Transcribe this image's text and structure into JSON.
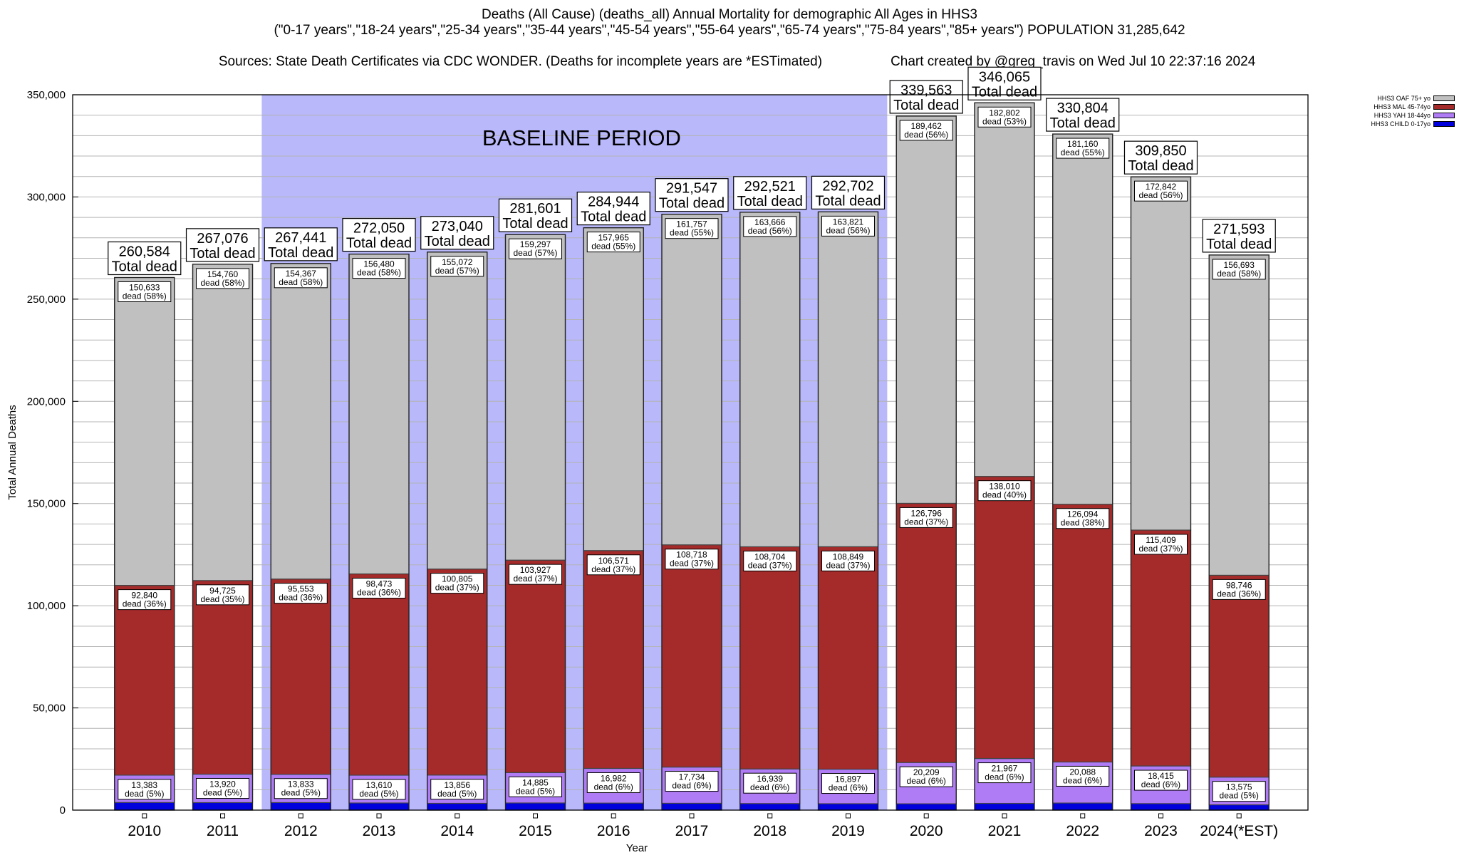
{
  "title": {
    "line1": "Deaths (All Cause) (deaths_all) Annual Mortality for demographic All Ages in HHS3",
    "line2": "(\"0-17 years\",\"18-24 years\",\"25-34 years\",\"35-44 years\",\"45-54 years\",\"55-64 years\",\"65-74 years\",\"75-84 years\",\"85+ years\") POPULATION 31,285,642",
    "line3_left": "Sources: State Death Certificates via CDC WONDER. (Deaths for incomplete years are *ESTimated)",
    "line3_right": "Chart created by @greg_travis on Wed Jul 10 22:37:16 2024"
  },
  "colors": {
    "child": "#0000dd",
    "yah": "#b07cf5",
    "mal": "#a52a2a",
    "oaf": "#c0c0c0",
    "baseline": "#b8b8fb"
  },
  "legend": [
    {
      "label": "HHS3 OAF 75+ yo",
      "color": "#c0c0c0"
    },
    {
      "label": "HHS3 MAL 45-74yo",
      "color": "#a52a2a"
    },
    {
      "label": "HHS3 YAH 18-44yo",
      "color": "#b07cf5"
    },
    {
      "label": "HHS3 CHILD 0-17yo",
      "color": "#0000dd"
    }
  ],
  "chart_data": {
    "type": "bar",
    "stacked": true,
    "xlabel": "Year",
    "ylabel": "Total Annual Deaths",
    "ylim": [
      0,
      350000
    ],
    "yticks": [
      0,
      50000,
      100000,
      150000,
      200000,
      250000,
      300000,
      350000
    ],
    "ytick_labels": [
      "0",
      "50,000",
      "100,000",
      "150,000",
      "200,000",
      "250,000",
      "300,000",
      "350,000"
    ],
    "categories": [
      "2010",
      "2011",
      "2012",
      "2013",
      "2014",
      "2015",
      "2016",
      "2017",
      "2018",
      "2019",
      "2020",
      "2021",
      "2022",
      "2023",
      "2024(*EST)"
    ],
    "baseline": {
      "label": "BASELINE PERIOD",
      "from": "2012",
      "to": "2019"
    },
    "total_suffix": "Total dead",
    "totals": [
      "260,584",
      "267,076",
      "267,441",
      "272,050",
      "273,040",
      "281,601",
      "284,944",
      "291,547",
      "292,521",
      "292,702",
      "339,563",
      "346,065",
      "330,804",
      "309,850",
      "271,593"
    ],
    "series": [
      {
        "name": "HHS3 CHILD 0-17yo",
        "values": [
          3728,
          3671,
          3688,
          3487,
          3307,
          3492,
          3426,
          3338,
          3212,
          3135,
          3096,
          3286,
          3462,
          3184,
          2579
        ]
      },
      {
        "name": "HHS3 YAH 18-44yo",
        "values": [
          13383,
          13920,
          13833,
          13610,
          13856,
          14885,
          16982,
          17734,
          16939,
          16897,
          20209,
          21967,
          20088,
          18415,
          13575
        ],
        "labels": [
          "13,383",
          "13,920",
          "13,833",
          "13,610",
          "13,856",
          "14,885",
          "16,982",
          "17,734",
          "16,939",
          "16,897",
          "20,209",
          "21,967",
          "20,088",
          "18,415",
          "13,575"
        ],
        "pct": [
          "dead (5%)",
          "dead (5%)",
          "dead (5%)",
          "dead (5%)",
          "dead (5%)",
          "dead (5%)",
          "dead (6%)",
          "dead (6%)",
          "dead (6%)",
          "dead (6%)",
          "dead (6%)",
          "dead (6%)",
          "dead (6%)",
          "dead (6%)",
          "dead (5%)"
        ]
      },
      {
        "name": "HHS3 MAL 45-74yo",
        "values": [
          92840,
          94725,
          95553,
          98473,
          100805,
          103927,
          106571,
          108718,
          108704,
          108849,
          126796,
          138010,
          126094,
          115409,
          98746
        ],
        "labels": [
          "92,840",
          "94,725",
          "95,553",
          "98,473",
          "100,805",
          "103,927",
          "106,571",
          "108,718",
          "108,704",
          "108,849",
          "126,796",
          "138,010",
          "126,094",
          "115,409",
          "98,746"
        ],
        "pct": [
          "dead (36%)",
          "dead (35%)",
          "dead (36%)",
          "dead (36%)",
          "dead (37%)",
          "dead (37%)",
          "dead (37%)",
          "dead (37%)",
          "dead (37%)",
          "dead (37%)",
          "dead (37%)",
          "dead (40%)",
          "dead (38%)",
          "dead (37%)",
          "dead (36%)"
        ]
      },
      {
        "name": "HHS3 OAF 75+ yo",
        "values": [
          150633,
          154760,
          154367,
          156480,
          155072,
          159297,
          157965,
          161757,
          163666,
          163821,
          189462,
          182802,
          181160,
          172842,
          156693
        ],
        "labels": [
          "150,633",
          "154,760",
          "154,367",
          "156,480",
          "155,072",
          "159,297",
          "157,965",
          "161,757",
          "163,666",
          "163,821",
          "189,462",
          "182,802",
          "181,160",
          "172,842",
          "156,693"
        ],
        "pct": [
          "dead (58%)",
          "dead (58%)",
          "dead (58%)",
          "dead (58%)",
          "dead (57%)",
          "dead (57%)",
          "dead (55%)",
          "dead (55%)",
          "dead (56%)",
          "dead (56%)",
          "dead (56%)",
          "dead (53%)",
          "dead (55%)",
          "dead (56%)",
          "dead (58%)"
        ]
      }
    ]
  }
}
